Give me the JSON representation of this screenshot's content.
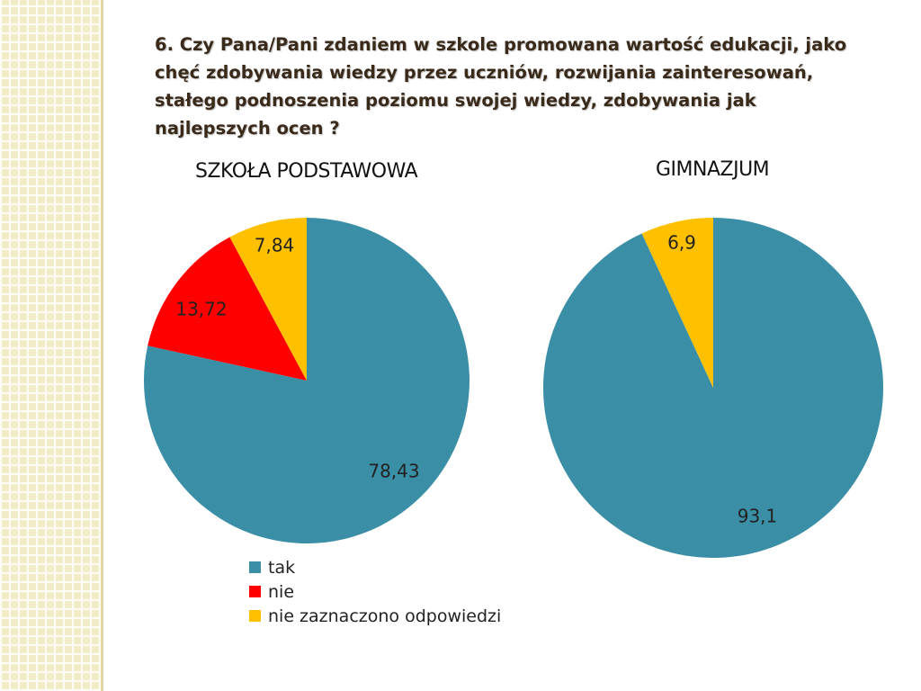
{
  "slide": {
    "title": "6. Czy Pana/Pani zdaniem w szkole promowana wartość edukacji, jako chęć zdobywania wiedzy przez uczniów, rozwijania zainteresowań, stałego podnoszenia poziomu swojej wiedzy, zdobywania jak najlepszych ocen ?"
  },
  "chart_data": [
    {
      "type": "pie",
      "title": "SZKOŁA PODSTAWOWA",
      "categories": [
        "tak",
        "nie",
        "nie zaznaczono odpowiedzi"
      ],
      "values": [
        78.43,
        13.72,
        7.84
      ],
      "value_labels": [
        "78,43",
        "13,72",
        "7,84"
      ],
      "colors": [
        "#3a8fa6",
        "#ff0000",
        "#ffc000"
      ],
      "legend": "bottom"
    },
    {
      "type": "pie",
      "title": "GIMNAZJUM",
      "categories": [
        "tak",
        "nie zaznaczono odpowiedzi"
      ],
      "values": [
        93.1,
        6.9
      ],
      "value_labels": [
        "93,1",
        "6,9"
      ],
      "colors": [
        "#3a8fa6",
        "#ffc000"
      ]
    }
  ],
  "legend": {
    "items": [
      {
        "label": "tak",
        "color": "#3a8fa6"
      },
      {
        "label": "nie",
        "color": "#ff0000"
      },
      {
        "label": "nie zaznaczono odpowiedzi",
        "color": "#ffc000"
      }
    ]
  }
}
